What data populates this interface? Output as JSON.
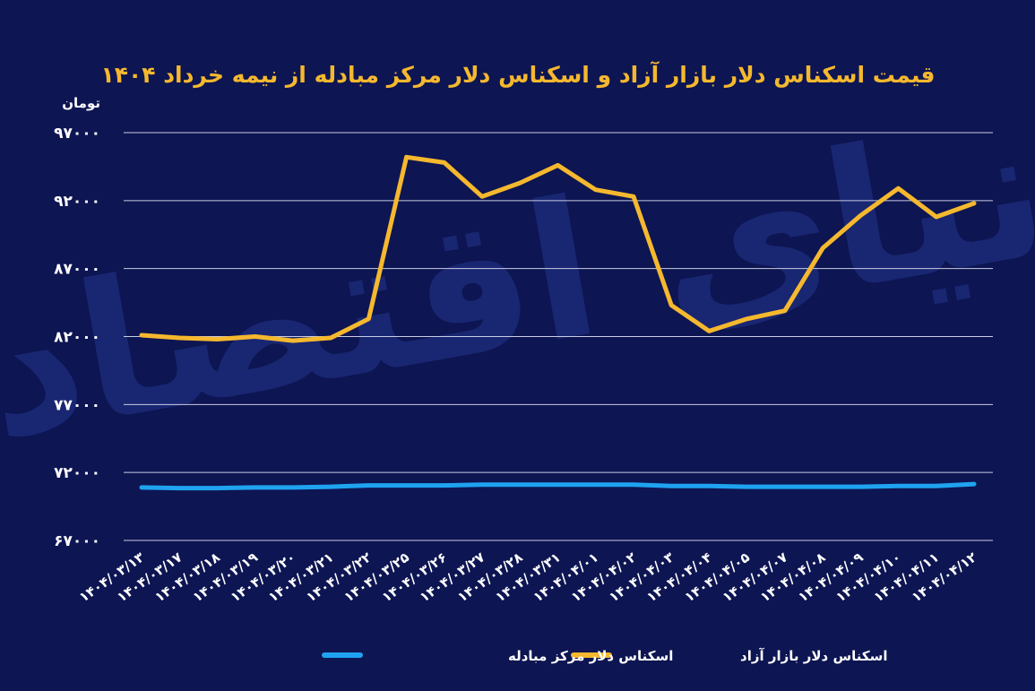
{
  "colors": {
    "background": "#0d1552",
    "grid": "#c9cde6",
    "text": "#ffffff",
    "title": "#f5b82e",
    "free_market": "#f5b82e",
    "exchange_center": "#1fa3f0",
    "watermark": "#1c2a78"
  },
  "watermark": "دنیای اقتصاد",
  "chart_data": {
    "type": "line",
    "title": "قیمت اسکناس دلار بازار آزاد و اسکناس دلار مرکز مبادله از نیمه خرداد ۱۴۰۴",
    "ylabel": "تومان",
    "xlabel": "",
    "ylim": [
      67000,
      97000
    ],
    "yticks": [
      "۹۷۰۰۰",
      "۹۲۰۰۰",
      "۸۷۰۰۰",
      "۸۲۰۰۰",
      "۷۷۰۰۰",
      "۷۲۰۰۰",
      "۶۷۰۰۰"
    ],
    "ytick_values": [
      97000,
      92000,
      87000,
      82000,
      77000,
      72000,
      67000
    ],
    "grid": true,
    "legend_position": "bottom",
    "categories": [
      "۱۴۰۴/۰۳/۱۳",
      "۱۴۰۴/۰۳/۱۷",
      "۱۴۰۴/۰۳/۱۸",
      "۱۴۰۴/۰۳/۱۹",
      "۱۴۰۴/۰۳/۲۰",
      "۱۴۰۴/۰۳/۲۱",
      "۱۴۰۴/۰۳/۲۲",
      "۱۴۰۴/۰۳/۲۵",
      "۱۴۰۴/۰۳/۲۶",
      "۱۴۰۴/۰۳/۲۷",
      "۱۴۰۴/۰۳/۲۸",
      "۱۴۰۴/۰۳/۳۱",
      "۱۴۰۴/۰۴/۰۱",
      "۱۴۰۴/۰۴/۰۲",
      "۱۴۰۴/۰۴/۰۳",
      "۱۴۰۴/۰۴/۰۴",
      "۱۴۰۴/۰۴/۰۵",
      "۱۴۰۴/۰۴/۰۷",
      "۱۴۰۴/۰۴/۰۸",
      "۱۴۰۴/۰۴/۰۹",
      "۱۴۰۴/۰۴/۱۰",
      "۱۴۰۴/۰۴/۱۱",
      "۱۴۰۴/۰۴/۱۲"
    ],
    "series": [
      {
        "name": "اسکناس دلار بازار آزاد",
        "values": [
          82100,
          81900,
          81800,
          82000,
          81700,
          81900,
          83300,
          95200,
          94800,
          92300,
          93300,
          94600,
          92800,
          92300,
          84300,
          82400,
          83300,
          83900,
          88500,
          90900,
          92900,
          90800,
          91800
        ]
      },
      {
        "name": "اسکناس دلار مرکز مبادله",
        "values": [
          70900,
          70850,
          70850,
          70900,
          70900,
          70950,
          71050,
          71050,
          71050,
          71100,
          71100,
          71100,
          71100,
          71100,
          71000,
          71000,
          70950,
          70950,
          70950,
          70950,
          71000,
          71000,
          71150
        ]
      }
    ]
  }
}
